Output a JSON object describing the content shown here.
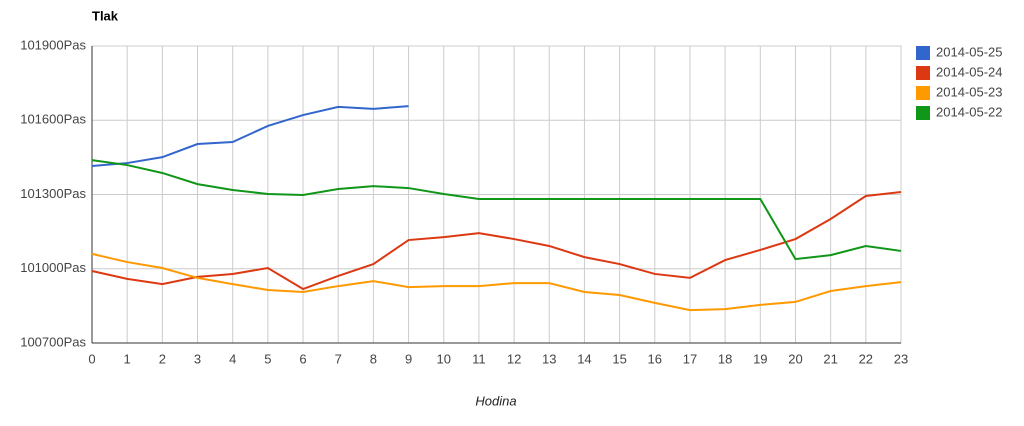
{
  "chart_data": {
    "type": "line",
    "title": "Tlak",
    "x_label": "Hodina",
    "x": [
      0,
      1,
      2,
      3,
      4,
      5,
      6,
      7,
      8,
      9,
      10,
      11,
      12,
      13,
      14,
      15,
      16,
      17,
      18,
      19,
      20,
      21,
      22,
      23
    ],
    "xlim": [
      0,
      23
    ],
    "xticks": [
      0,
      1,
      2,
      3,
      4,
      5,
      6,
      7,
      8,
      9,
      10,
      11,
      12,
      13,
      14,
      15,
      16,
      17,
      18,
      19,
      20,
      21,
      22,
      23
    ],
    "ylim": [
      100700,
      101900
    ],
    "yticks": [
      {
        "value": 100700,
        "label": "100700Pas"
      },
      {
        "value": 101000,
        "label": "101000Pas"
      },
      {
        "value": 101300,
        "label": "101300Pas"
      },
      {
        "value": 101600,
        "label": "101600Pas"
      },
      {
        "value": 101900,
        "label": "101900Pas"
      }
    ],
    "grid": true,
    "legend": "right",
    "series": [
      {
        "name": "2014-05-25",
        "color": "#3366cc",
        "values": [
          101415,
          101427,
          101451,
          101504,
          101512,
          101577,
          101621,
          101654,
          101646,
          101657,
          null,
          null,
          null,
          null,
          null,
          null,
          null,
          null,
          null,
          null,
          null,
          null,
          null,
          null
        ]
      },
      {
        "name": "2014-05-24",
        "color": "#dc3912",
        "values": [
          100991,
          100959,
          100938,
          100967,
          100979,
          101003,
          100918,
          100971,
          101019,
          101116,
          101128,
          101144,
          101120,
          101092,
          101047,
          101019,
          100979,
          100963,
          101035,
          101076,
          101120,
          101201,
          101294,
          101310
        ]
      },
      {
        "name": "2014-05-23",
        "color": "#ff9900",
        "values": [
          101060,
          101027,
          101003,
          100963,
          100938,
          100914,
          100906,
          100930,
          100950,
          100926,
          100930,
          100930,
          100942,
          100942,
          100906,
          100894,
          100862,
          100833,
          100837,
          100854,
          100866,
          100910,
          100930,
          100946
        ]
      },
      {
        "name": "2014-05-22",
        "color": "#109618",
        "values": [
          101439,
          101419,
          101387,
          101342,
          101318,
          101302,
          101298,
          101322,
          101334,
          101326,
          101302,
          101282,
          101282,
          101282,
          101282,
          101282,
          101282,
          101282,
          101282,
          101282,
          101039,
          101055,
          101092,
          101072
        ]
      }
    ]
  }
}
